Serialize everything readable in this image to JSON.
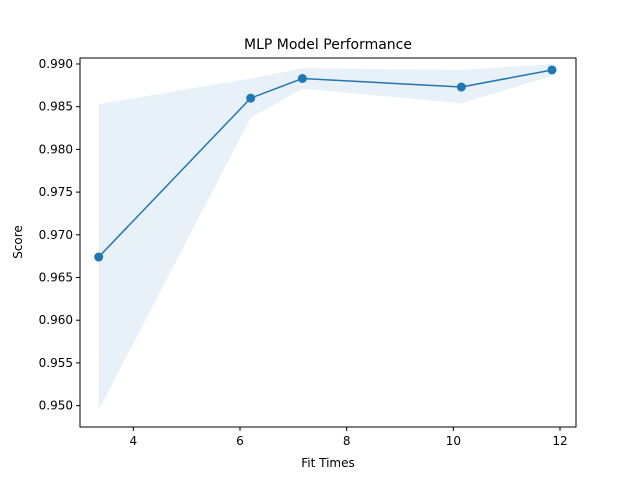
{
  "chart_data": {
    "type": "line",
    "title": "MLP Model Performance",
    "xlabel": "Fit Times",
    "ylabel": "Score",
    "xlim": [
      3.0,
      12.3
    ],
    "ylim": [
      0.9475,
      0.9907
    ],
    "xticks": [
      4,
      6,
      8,
      10,
      12
    ],
    "yticks": [
      0.95,
      0.955,
      0.96,
      0.965,
      0.97,
      0.975,
      0.98,
      0.985,
      0.99
    ],
    "xtick_labels": [
      "4",
      "6",
      "8",
      "10",
      "12"
    ],
    "ytick_labels": [
      "0.950",
      "0.955",
      "0.960",
      "0.965",
      "0.970",
      "0.975",
      "0.980",
      "0.985",
      "0.990"
    ],
    "series": [
      {
        "x": [
          3.35,
          6.2,
          7.17,
          10.15,
          11.85
        ],
        "values": [
          0.9674,
          0.986,
          0.9883,
          0.9873,
          0.9893
        ],
        "upper": [
          0.9853,
          0.9883,
          0.9895,
          0.9893,
          0.99
        ],
        "lower": [
          0.9495,
          0.9837,
          0.9871,
          0.9854,
          0.9886
        ],
        "color": "#1f77b4",
        "band_color": "#1f77b4"
      }
    ],
    "grid": false,
    "legend": "none"
  }
}
